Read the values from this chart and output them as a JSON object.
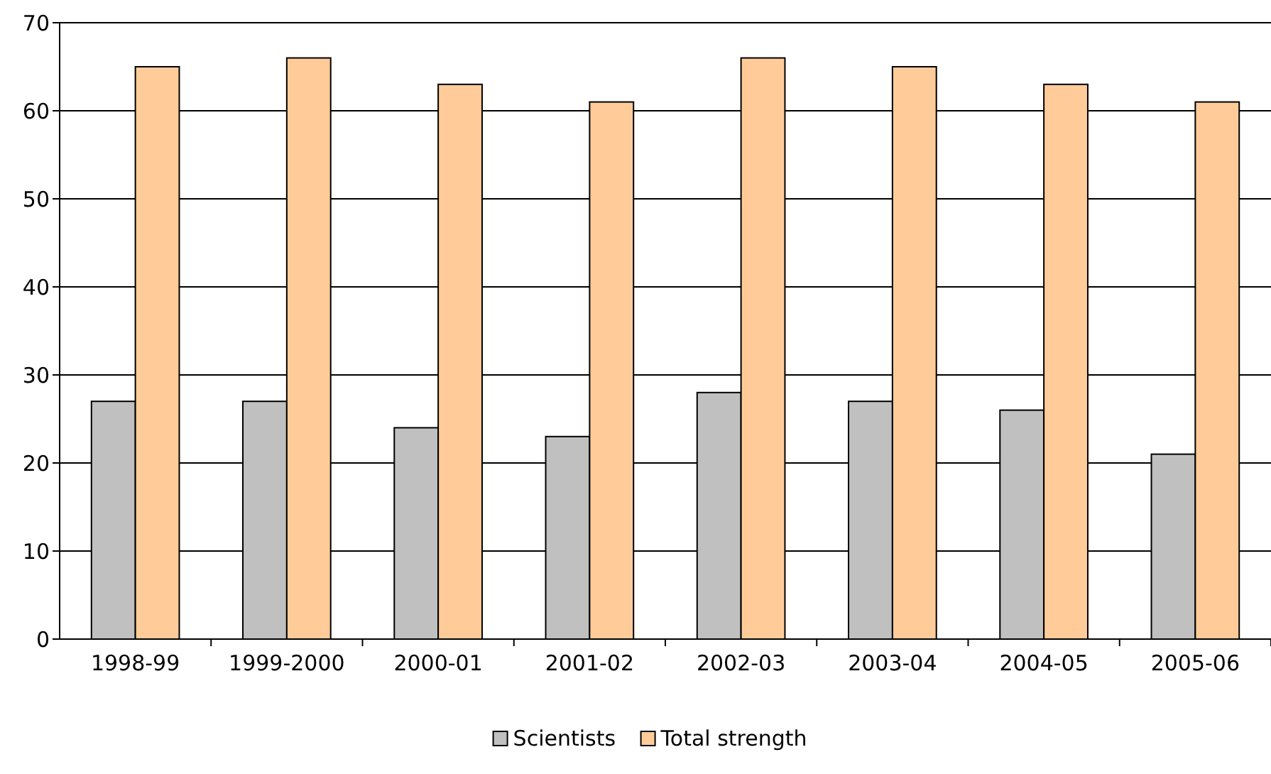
{
  "chart_data": {
    "type": "bar",
    "categories": [
      "1998-99",
      "1999-2000",
      "2000-01",
      "2001-02",
      "2002-03",
      "2003-04",
      "2004-05",
      "2005-06"
    ],
    "series": [
      {
        "name": "Scientists",
        "color": "#c0c0c0",
        "values": [
          27,
          27,
          24,
          23,
          28,
          27,
          26,
          21
        ]
      },
      {
        "name": "Total strength",
        "color": "#ffcc99",
        "values": [
          65,
          66,
          63,
          61,
          66,
          65,
          63,
          61
        ]
      }
    ],
    "ylim": [
      0,
      70
    ],
    "yticks": [
      0,
      10,
      20,
      30,
      40,
      50,
      60,
      70
    ],
    "grid": "y",
    "legend": "bottom"
  }
}
